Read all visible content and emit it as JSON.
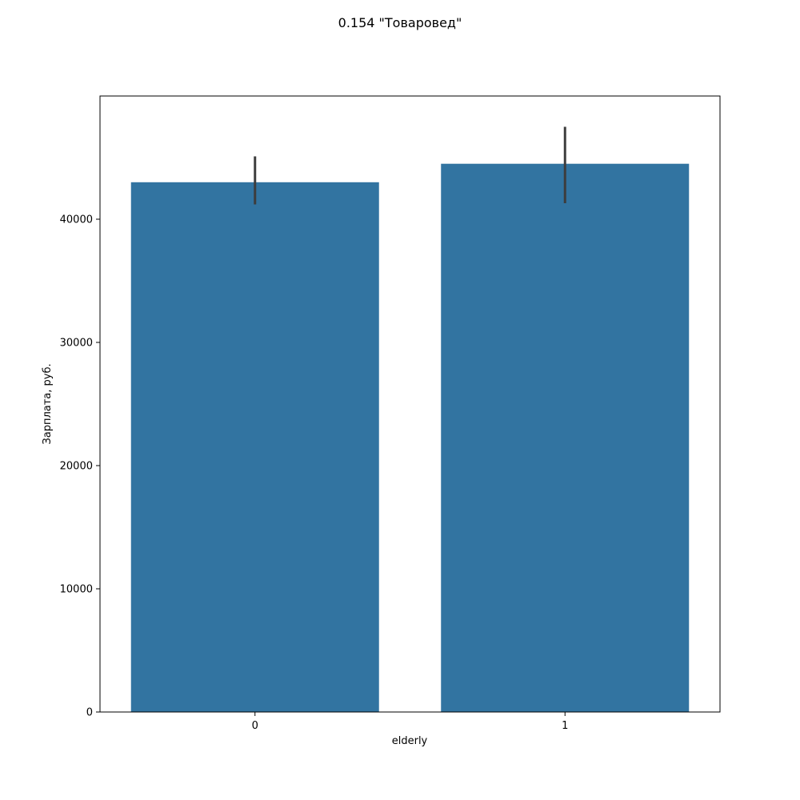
{
  "chart_data": {
    "type": "bar",
    "title": "0.154 \"Товаровед\"",
    "xlabel": "elderly",
    "ylabel": "Зарплата, руб.",
    "categories": [
      "0",
      "1"
    ],
    "values": [
      43000,
      44500
    ],
    "error_bars": [
      {
        "low": 41200,
        "high": 45100
      },
      {
        "low": 41300,
        "high": 47500
      }
    ],
    "ylim": [
      0,
      50000
    ],
    "yticks": [
      0,
      10000,
      20000,
      30000,
      40000
    ],
    "ytick_labels": [
      "0",
      "10000",
      "20000",
      "30000",
      "40000"
    ],
    "grid": false,
    "colors": {
      "bar": "#3274a1",
      "error_bar": "#3d3d3d",
      "axis": "#000000"
    }
  }
}
